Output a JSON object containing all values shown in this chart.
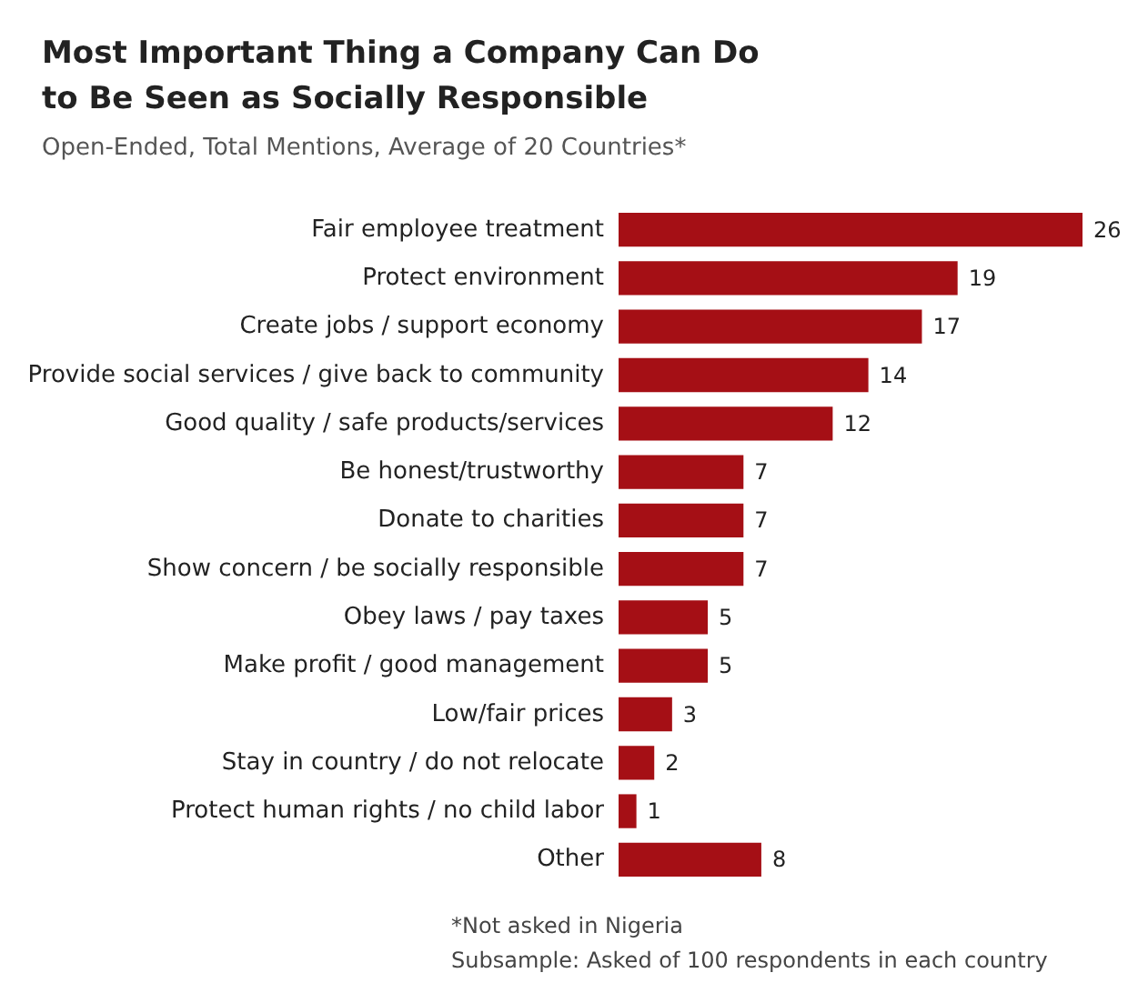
{
  "chart_data": {
    "type": "bar",
    "orientation": "horizontal",
    "title": "Most Important Thing a Company Can Do\nto Be Seen as Socially Responsible",
    "subtitle": "Open-Ended, Total Mentions, Average of 20 Countries*",
    "categories": [
      "Fair employee treatment",
      "Protect environment",
      "Create jobs / support economy",
      "Provide social services / give back to community",
      "Good quality / safe products/services",
      "Be honest/trustworthy",
      "Donate to charities",
      "Show concern / be socially responsible",
      "Obey laws / pay taxes",
      "Make profit / good management",
      "Low/fair prices",
      "Stay in country / do not relocate",
      "Protect human rights / no child labor",
      "Other"
    ],
    "values": [
      26,
      19,
      17,
      14,
      12,
      7,
      7,
      7,
      5,
      5,
      3,
      2,
      1,
      8
    ],
    "color": "#a50f15",
    "data_labels": true,
    "annotations": [
      "*Not asked in Nigeria",
      "Subsample: Asked of 100 respondents in each country"
    ]
  }
}
